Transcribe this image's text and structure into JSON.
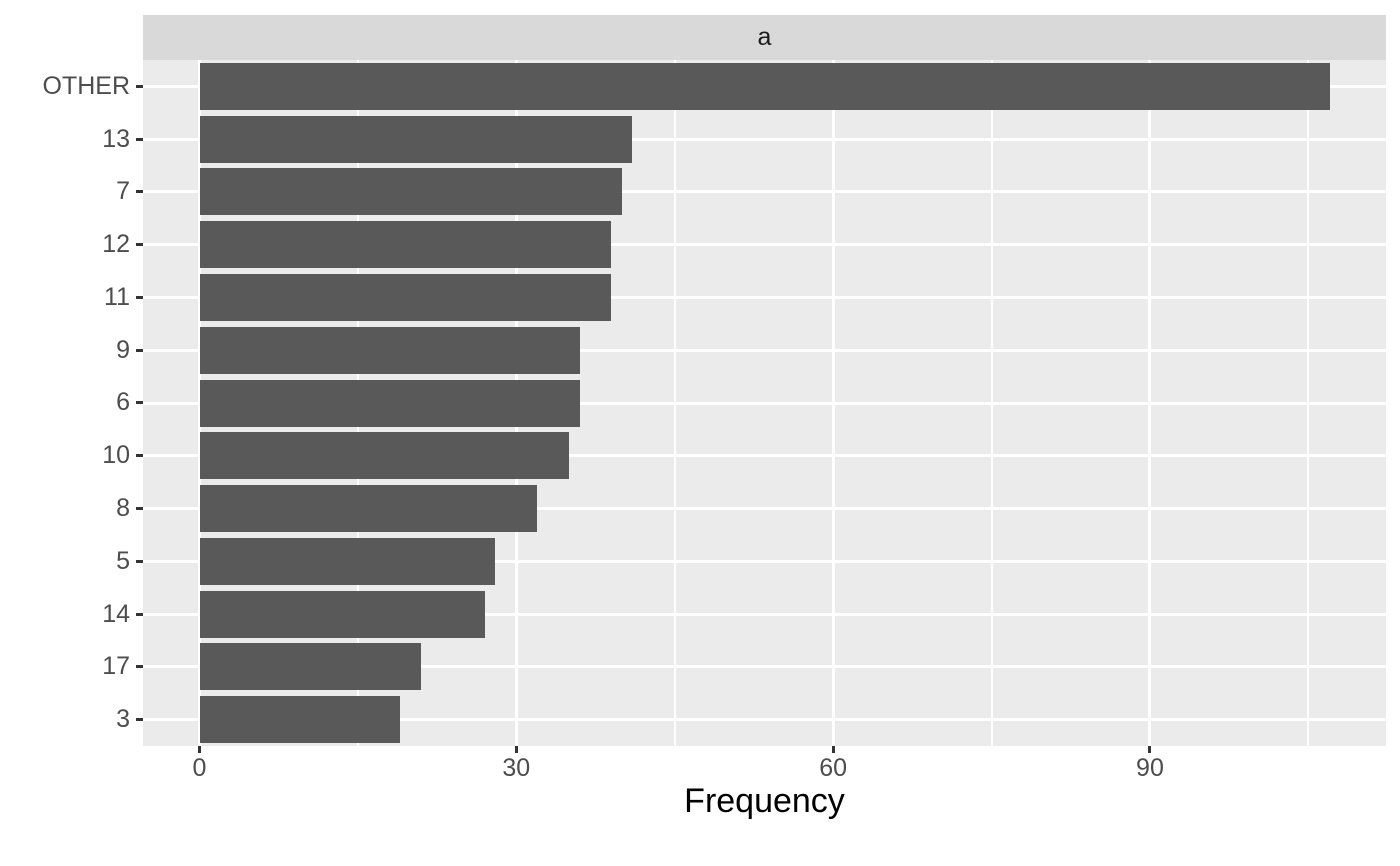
{
  "chart_data": {
    "type": "bar",
    "orientation": "horizontal",
    "title": "",
    "facet_label": "a",
    "categories": [
      "OTHER",
      "13",
      "7",
      "12",
      "11",
      "9",
      "6",
      "10",
      "8",
      "5",
      "14",
      "17",
      "3"
    ],
    "values": [
      107,
      41,
      40,
      39,
      39,
      36,
      36,
      35,
      32,
      28,
      27,
      21,
      19
    ],
    "xlabel": "Frequency",
    "ylabel": "",
    "x_ticks": [
      0,
      30,
      60,
      90
    ],
    "x_minor_ticks": [
      15,
      45,
      75,
      105
    ],
    "xlim": [
      -5.35,
      112.35
    ],
    "grid": true,
    "legend": "none",
    "bar_width_fraction": 0.9
  },
  "colors": {
    "bar_fill": "#595959",
    "panel_background": "#EBEBEB",
    "strip_background": "#D9D9D9",
    "gridline": "#FFFFFF",
    "axis_text": "#4D4D4D",
    "strip_text": "#1A1A1A",
    "axis_title": "#000000",
    "tick_mark": "#333333",
    "page_background": "#FFFFFF"
  }
}
